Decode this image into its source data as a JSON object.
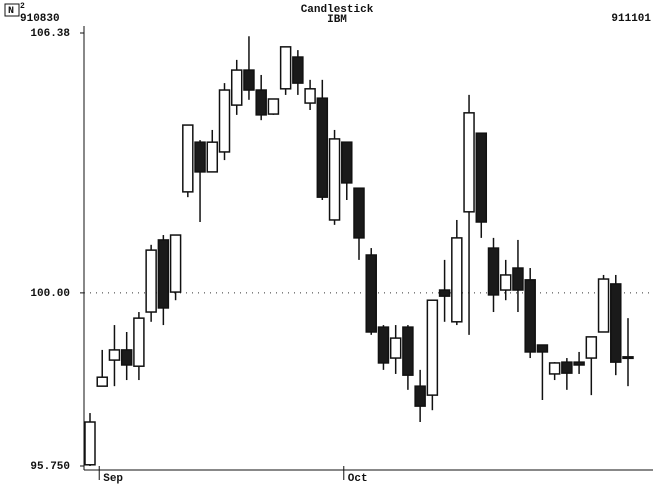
{
  "chart_data": {
    "type": "candlestick",
    "badge": {
      "letter": "N",
      "sup": "2"
    },
    "title": "Candlestick",
    "subtitle": "IBM",
    "start_label": "910830",
    "end_label": "911101",
    "categories": [
      null,
      "Sep",
      null,
      null,
      null,
      null,
      null,
      null,
      null,
      null,
      null,
      null,
      null,
      null,
      null,
      null,
      null,
      null,
      null,
      null,
      null,
      "Oct",
      null,
      null,
      null,
      null,
      null,
      null,
      null,
      null,
      null,
      null,
      null,
      null,
      null,
      null,
      null,
      null,
      null,
      null,
      null,
      null,
      null,
      null,
      null
    ],
    "open": [
      95.78,
      97.71,
      98.35,
      98.6,
      98.2,
      99.53,
      101.3,
      100.02,
      102.48,
      103.7,
      102.97,
      103.46,
      104.61,
      105.47,
      104.98,
      104.39,
      105.01,
      105.79,
      104.66,
      104.78,
      101.79,
      103.7,
      102.57,
      100.93,
      99.16,
      98.4,
      99.16,
      97.71,
      97.49,
      100.07,
      99.29,
      101.99,
      103.92,
      101.1,
      100.07,
      100.61,
      100.32,
      98.72,
      98.01,
      98.3,
      98.3,
      98.4,
      99.04,
      100.22,
      98.43
    ],
    "high": [
      97.05,
      98.6,
      99.21,
      99.04,
      99.53,
      101.18,
      101.42,
      101.42,
      104.12,
      103.75,
      104.0,
      105.15,
      105.72,
      106.3,
      105.35,
      104.76,
      106.04,
      105.96,
      105.23,
      105.23,
      104.0,
      103.7,
      102.57,
      101.1,
      99.21,
      99.21,
      99.21,
      98.11,
      99.82,
      100.81,
      101.79,
      104.86,
      103.92,
      101.35,
      100.81,
      101.3,
      100.61,
      98.72,
      98.3,
      98.4,
      98.55,
      98.92,
      100.44,
      100.44,
      99.38
    ],
    "low": [
      95.75,
      97.71,
      97.71,
      97.86,
      97.86,
      99.29,
      99.21,
      99.82,
      102.35,
      101.74,
      102.97,
      103.26,
      104.37,
      104.74,
      104.24,
      104.37,
      104.86,
      104.86,
      104.49,
      102.28,
      101.67,
      102.28,
      100.81,
      98.97,
      98.11,
      98.01,
      97.62,
      96.83,
      97.12,
      99.29,
      99.21,
      98.97,
      101.35,
      99.53,
      99.82,
      99.53,
      98.4,
      97.37,
      97.86,
      97.62,
      98.01,
      97.49,
      99.04,
      97.98,
      97.71
    ],
    "close": [
      96.83,
      97.93,
      98.6,
      98.23,
      99.38,
      101.05,
      99.63,
      101.42,
      104.12,
      102.97,
      103.7,
      104.98,
      105.47,
      104.98,
      104.37,
      104.76,
      106.04,
      105.15,
      105.01,
      102.35,
      103.78,
      102.7,
      101.35,
      99.04,
      98.28,
      98.89,
      97.98,
      97.22,
      99.82,
      99.92,
      101.35,
      104.42,
      101.74,
      99.95,
      100.44,
      100.07,
      98.55,
      98.55,
      98.28,
      98.03,
      98.23,
      98.92,
      100.34,
      98.3,
      98.4
    ],
    "up_color": "#ffffff",
    "down_color": "#1a1a1a",
    "ylim": [
      95.75,
      106.38
    ],
    "yticks": [
      {
        "value": 95.75,
        "label": "95.750"
      },
      {
        "value": 100,
        "label": "100.00"
      },
      106.38
    ],
    "grid": true
  }
}
